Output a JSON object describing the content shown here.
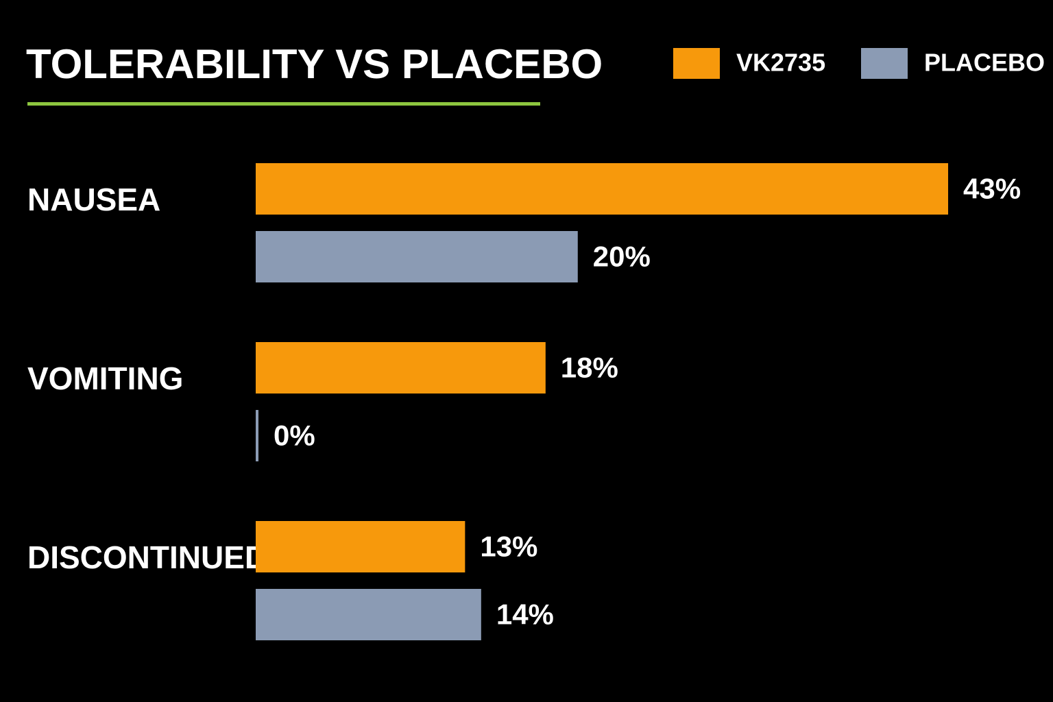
{
  "chart_data": {
    "type": "hbar",
    "title": "TOLERABILITY VS PLACEBO",
    "categories": [
      "NAUSEA",
      "VOMITING",
      "DISCONTINUED"
    ],
    "series": [
      {
        "name": "VK2735",
        "color": "#f7990c",
        "values": [
          43,
          18,
          13
        ],
        "value_labels": [
          "43%",
          "18%",
          "13%"
        ]
      },
      {
        "name": "PLACEBO",
        "color": "#8b9bb4",
        "values": [
          20,
          0,
          14
        ],
        "value_labels": [
          "20%",
          "0%",
          "14%"
        ]
      }
    ],
    "xlim": [
      0,
      45
    ],
    "legend": "top-right"
  }
}
